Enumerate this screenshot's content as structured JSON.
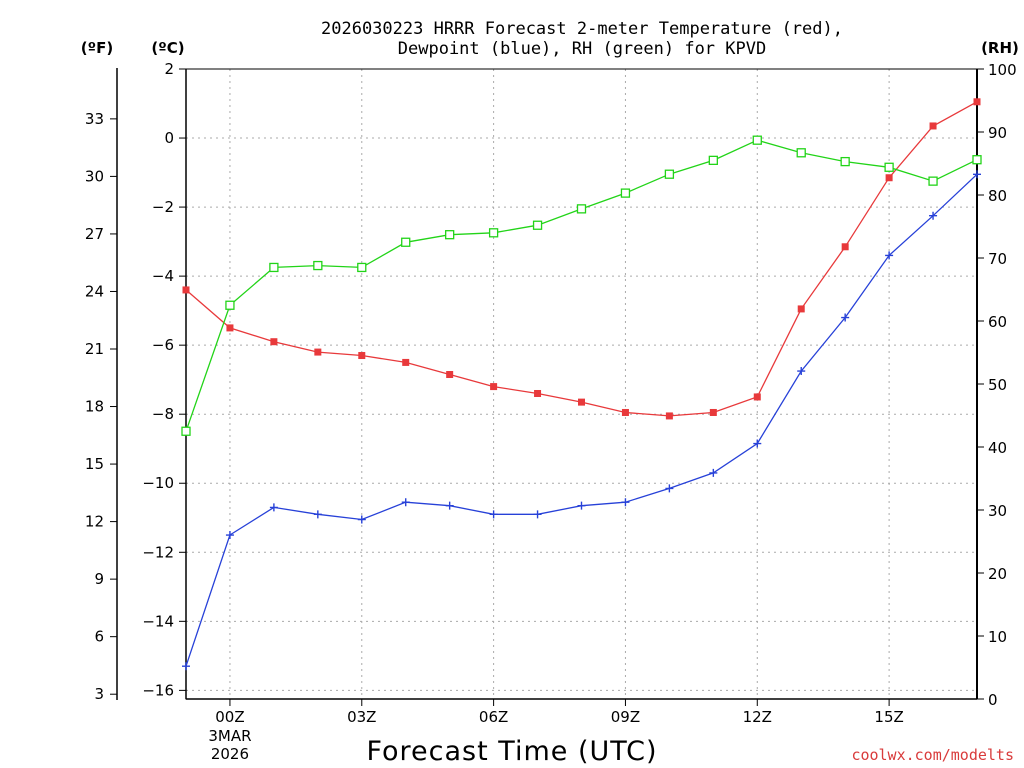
{
  "chart_data": {
    "type": "line",
    "title_line1": "2026030223 HRRR Forecast 2-meter Temperature (red),",
    "title_line2": "Dewpoint (blue), RH (green) for KPVD",
    "xlabel": "Forecast Time (UTC)",
    "credit": "coolwx.com/modelts",
    "units": {
      "fahrenheit": "(ºF)",
      "celsius": "(ºC)",
      "rh": "(RH)"
    },
    "x_range": [
      -1,
      17
    ],
    "celsius_range": [
      -16.25,
      2
    ],
    "rh_range": [
      0,
      100
    ],
    "grid": true,
    "x_ticks": [
      {
        "x": 0,
        "label": "00Z",
        "sub1": "3MAR",
        "sub2": "2026"
      },
      {
        "x": 3,
        "label": "03Z"
      },
      {
        "x": 6,
        "label": "06Z"
      },
      {
        "x": 9,
        "label": "09Z"
      },
      {
        "x": 12,
        "label": "12Z"
      },
      {
        "x": 15,
        "label": "15Z"
      }
    ],
    "celsius_ticks": [
      2,
      0,
      -2,
      -4,
      -6,
      -8,
      -10,
      -12,
      -14,
      -16
    ],
    "celsius_tick_labels": [
      "2",
      "0",
      "−2",
      "−4",
      "−6",
      "−8",
      "−10",
      "−12",
      "−14",
      "−16"
    ],
    "fahrenheit_ticks": [
      33,
      30,
      27,
      24,
      21,
      18,
      15,
      12,
      9,
      6,
      3
    ],
    "rh_ticks": [
      100,
      90,
      80,
      70,
      60,
      50,
      40,
      30,
      20,
      10,
      0
    ],
    "x": [
      -1,
      0,
      1,
      2,
      3,
      4,
      5,
      6,
      7,
      8,
      9,
      10,
      11,
      12,
      13,
      14,
      15,
      16,
      17
    ],
    "series": [
      {
        "name": "2-meter Temperature",
        "axis": "celsius",
        "color": "#e8393b",
        "marker": "filled-square",
        "values": [
          -4.4,
          -5.5,
          -5.9,
          -6.2,
          -6.3,
          -6.5,
          -6.85,
          -7.2,
          -7.4,
          -7.65,
          -7.95,
          -8.05,
          -7.95,
          -7.5,
          -4.95,
          -3.15,
          -1.15,
          0.35,
          1.05
        ]
      },
      {
        "name": "Dewpoint",
        "axis": "celsius",
        "color": "#2741d8",
        "marker": "plus",
        "values": [
          -15.3,
          -11.5,
          -10.7,
          -10.9,
          -11.05,
          -10.55,
          -10.65,
          -10.9,
          -10.9,
          -10.65,
          -10.55,
          -10.15,
          -9.7,
          -8.85,
          -6.75,
          -5.2,
          -3.4,
          -2.25,
          -1.05
        ]
      },
      {
        "name": "RH",
        "axis": "rh",
        "color": "#22d418",
        "marker": "open-square",
        "values": [
          42.5,
          62.5,
          68.5,
          68.8,
          68.5,
          72.5,
          73.7,
          74.0,
          75.2,
          77.8,
          80.3,
          83.3,
          85.5,
          88.7,
          86.7,
          85.3,
          84.4,
          82.2,
          85.6
        ]
      }
    ]
  }
}
